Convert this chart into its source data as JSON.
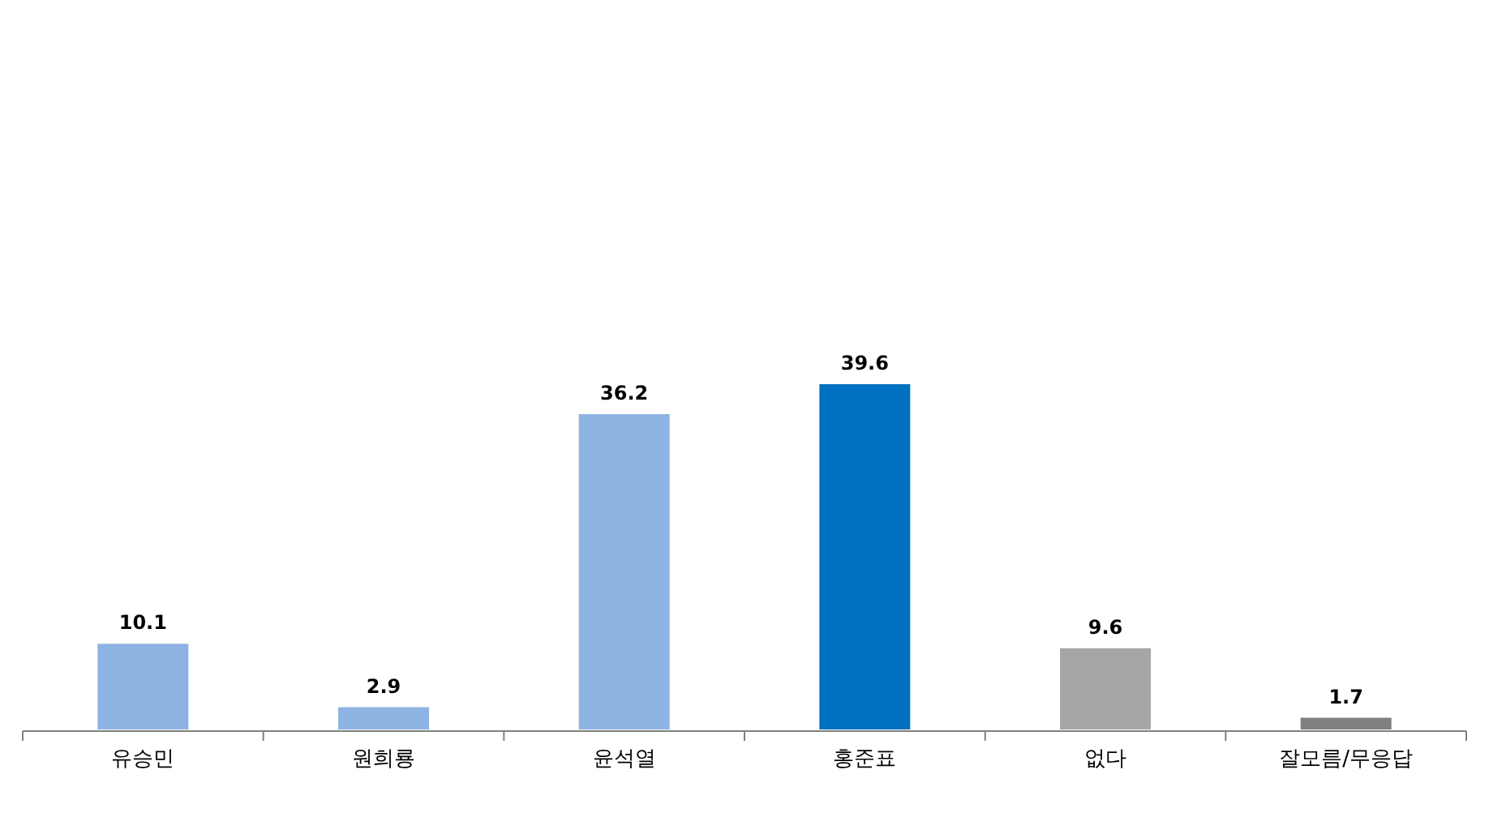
{
  "chart_data": {
    "type": "bar",
    "categories": [
      "유승민",
      "원희룡",
      "윤석열",
      "홍준표",
      "없다",
      "잘모름/무응답"
    ],
    "values": [
      10.1,
      2.9,
      36.2,
      39.6,
      9.6,
      1.7
    ],
    "colors": [
      "#8db3e2",
      "#8db3e2",
      "#8db3e2",
      "#0070c0",
      "#a6a6a6",
      "#7f7f7f"
    ],
    "data_labels": true
  }
}
